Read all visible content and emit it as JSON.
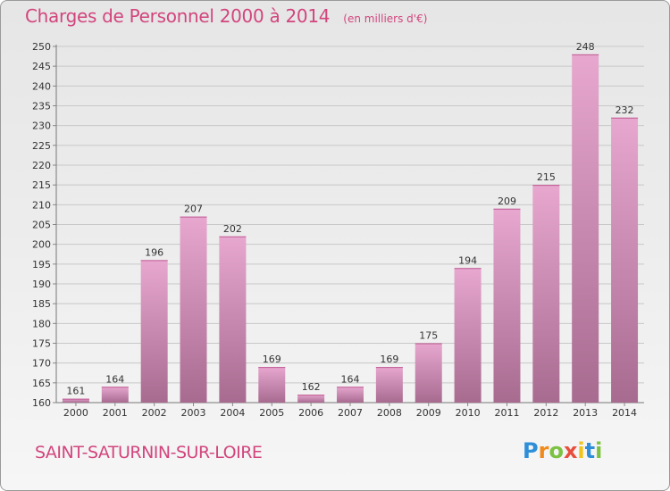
{
  "title": "Charges de Personnel 2000 à 2014",
  "subtitle": "(en milliers d'€)",
  "commune": "SAINT-SATURNIN-SUR-LOIRE",
  "logo": {
    "letters": [
      "P",
      "r",
      "o",
      "x",
      "i",
      "t",
      "i"
    ],
    "colors": [
      "#2e8ed8",
      "#f08a1c",
      "#7cc242",
      "#e94e3c",
      "#f0c419",
      "#2e8ed8",
      "#7cc242"
    ]
  },
  "colors": {
    "bar_top": "#e7a7cf",
    "bar_bottom": "#a86b90",
    "title": "#d2457d"
  },
  "chart_data": {
    "type": "bar",
    "categories": [
      "2000",
      "2001",
      "2002",
      "2003",
      "2004",
      "2005",
      "2006",
      "2007",
      "2008",
      "2009",
      "2010",
      "2011",
      "2012",
      "2013",
      "2014"
    ],
    "values": [
      161,
      164,
      196,
      207,
      202,
      169,
      162,
      164,
      169,
      175,
      194,
      209,
      215,
      248,
      232
    ],
    "ylim": [
      160,
      250
    ],
    "yticks": [
      160,
      165,
      170,
      175,
      180,
      185,
      190,
      195,
      200,
      205,
      210,
      215,
      220,
      225,
      230,
      235,
      240,
      245,
      250
    ],
    "grid": true,
    "legend": "none",
    "xlabel": "",
    "ylabel": ""
  }
}
